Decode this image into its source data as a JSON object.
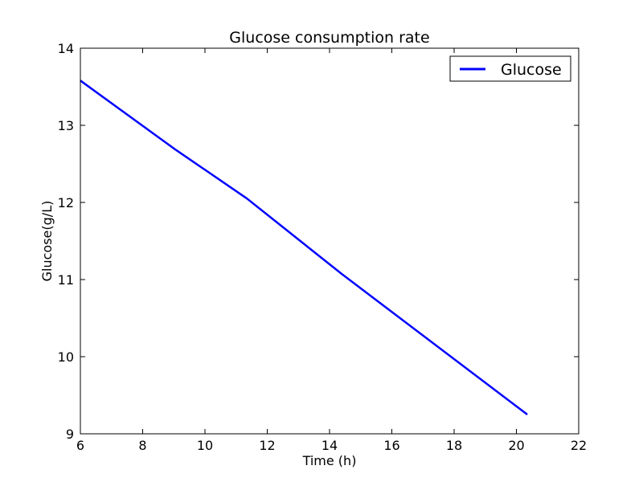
{
  "chart_data": {
    "type": "line",
    "title": "Glucose consumption rate",
    "xlabel": "Time (h)",
    "ylabel": "Glucose(g/L)",
    "xlim": [
      6,
      22
    ],
    "ylim": [
      9,
      14
    ],
    "xticks": [
      6,
      8,
      10,
      12,
      14,
      16,
      18,
      20,
      22
    ],
    "yticks": [
      9,
      10,
      11,
      12,
      13,
      14
    ],
    "grid": false,
    "legend_position": "top-right",
    "series": [
      {
        "name": "Glucose",
        "color": "#0000ff",
        "x": [
          6.0,
          9.0,
          11.35,
          14.4,
          20.35
        ],
        "y": [
          13.58,
          12.7,
          12.05,
          11.07,
          9.25
        ]
      }
    ]
  }
}
